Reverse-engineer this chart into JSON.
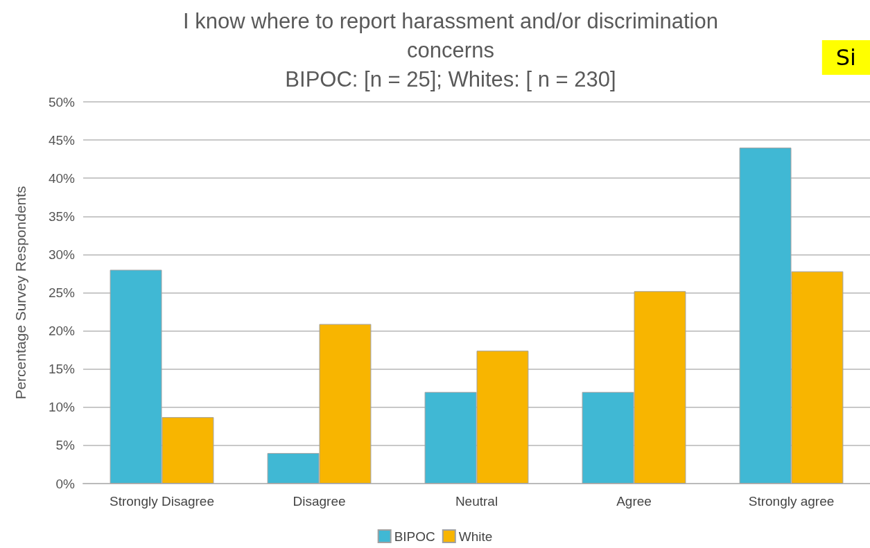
{
  "chart_data": {
    "type": "bar",
    "title": "I know where to report harassment and/or discrimination\nconcerns",
    "subtitle": "BIPOC: [n = 25]; Whites: [ n = 230]",
    "ylabel": "Percentage Survey Respondents",
    "categories": [
      "Strongly Disagree",
      "Disagree",
      "Neutral",
      "Agree",
      "Strongly agree"
    ],
    "series": [
      {
        "name": "BIPOC",
        "color": "#40b8d4",
        "values": [
          28,
          4,
          12,
          12,
          44
        ]
      },
      {
        "name": "White",
        "color": "#f8b500",
        "values": [
          8.7,
          20.9,
          17.4,
          25.2,
          27.8
        ]
      }
    ],
    "ylim": [
      0,
      50
    ],
    "yticks": [
      {
        "value": 0,
        "label": "0%"
      },
      {
        "value": 5,
        "label": "5%"
      },
      {
        "value": 10,
        "label": "10%"
      },
      {
        "value": 15,
        "label": "15%"
      },
      {
        "value": 20,
        "label": "20%"
      },
      {
        "value": 25,
        "label": "25%"
      },
      {
        "value": 30,
        "label": "30%"
      },
      {
        "value": 35,
        "label": "35%"
      },
      {
        "value": 40,
        "label": "40%"
      },
      {
        "value": 45,
        "label": "45%"
      },
      {
        "value": 50,
        "label": "50%"
      }
    ],
    "grid": "y",
    "legend": "bottom",
    "annotations": [
      "Si"
    ]
  }
}
